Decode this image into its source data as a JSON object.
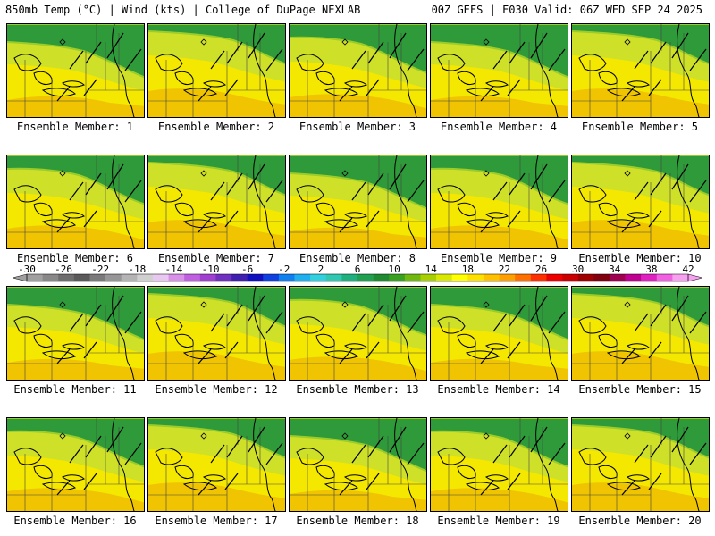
{
  "header": {
    "left": "850mb Temp (°C) | Wind (kts) | College of DuPage NEXLAB",
    "right": "00Z GEFS | F030 Valid: 06Z WED SEP 24 2025"
  },
  "members": [
    {
      "label": "Ensemble Member: 1",
      "variant": 0
    },
    {
      "label": "Ensemble Member: 2",
      "variant": 1
    },
    {
      "label": "Ensemble Member: 3",
      "variant": 2
    },
    {
      "label": "Ensemble Member: 4",
      "variant": 0
    },
    {
      "label": "Ensemble Member: 5",
      "variant": 1
    },
    {
      "label": "Ensemble Member: 6",
      "variant": 2
    },
    {
      "label": "Ensemble Member: 7",
      "variant": 1
    },
    {
      "label": "Ensemble Member: 8",
      "variant": 0
    },
    {
      "label": "Ensemble Member: 9",
      "variant": 2
    },
    {
      "label": "Ensemble Member: 10",
      "variant": 1
    },
    {
      "label": "Ensemble Member: 11",
      "variant": 0
    },
    {
      "label": "Ensemble Member: 12",
      "variant": 1
    },
    {
      "label": "Ensemble Member: 13",
      "variant": 2
    },
    {
      "label": "Ensemble Member: 14",
      "variant": 0
    },
    {
      "label": "Ensemble Member: 15",
      "variant": 1
    },
    {
      "label": "Ensemble Member: 16",
      "variant": 2
    },
    {
      "label": "Ensemble Member: 17",
      "variant": 1
    },
    {
      "label": "Ensemble Member: 18",
      "variant": 0
    },
    {
      "label": "Ensemble Member: 19",
      "variant": 2
    },
    {
      "label": "Ensemble Member: 20",
      "variant": 1
    }
  ],
  "colorbar": {
    "tick_labels": [
      "-30",
      "-26",
      "-22",
      "-18",
      "-14",
      "-10",
      "-6",
      "-2",
      "2",
      "6",
      "10",
      "14",
      "18",
      "22",
      "26",
      "30",
      "34",
      "38",
      "42"
    ],
    "colors": [
      "#a0a0a0",
      "#888888",
      "#6e6e6e",
      "#5a5a5a",
      "#7a7a7a",
      "#969696",
      "#b4b4b4",
      "#d0d0d0",
      "#e8c8f0",
      "#d890e8",
      "#c060e0",
      "#a040d0",
      "#7030c0",
      "#4020b0",
      "#1010c0",
      "#1040e0",
      "#1080f0",
      "#20b0f0",
      "#30d0e0",
      "#30c8b0",
      "#20b080",
      "#20a050",
      "#208a30",
      "#3aa020",
      "#70b810",
      "#a8d000",
      "#d8e800",
      "#ffff00",
      "#ffe000",
      "#ffc000",
      "#ffa000",
      "#ff7000",
      "#ff3000",
      "#ee0000",
      "#cc0000",
      "#a00000",
      "#800010",
      "#a00050",
      "#c00090",
      "#e020c0",
      "#f060e0",
      "#f8a0f0"
    ]
  },
  "palette": {
    "green": "#2e9a3a",
    "light_green": "#9ccc2a",
    "yellow_green": "#cfe028",
    "yellow": "#f4e800",
    "gold": "#f0c400",
    "border": "#000000",
    "state_line": "#444444"
  }
}
